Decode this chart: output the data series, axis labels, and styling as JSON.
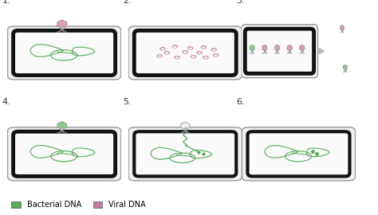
{
  "background_color": "#ffffff",
  "cell_fill": "#f8f8f8",
  "cell_outer_edge": "#222222",
  "cell_inner_edge": "#888888",
  "bacterial_dna_color": "#5aaa5a",
  "viral_dna_color": "#c47aa0",
  "legend_bacterial": "Bacterial DNA",
  "legend_viral": "Viral DNA",
  "step_labels": [
    "1.",
    "2.",
    "3.",
    "4.",
    "5.",
    "6."
  ],
  "phage_head_viral": "#d9a0c0",
  "phage_head_bac": "#90c890",
  "phage_head_empty": "#eeeeee",
  "phage_body": "#b0b0b0",
  "arrow_color": "#bbbbbb"
}
